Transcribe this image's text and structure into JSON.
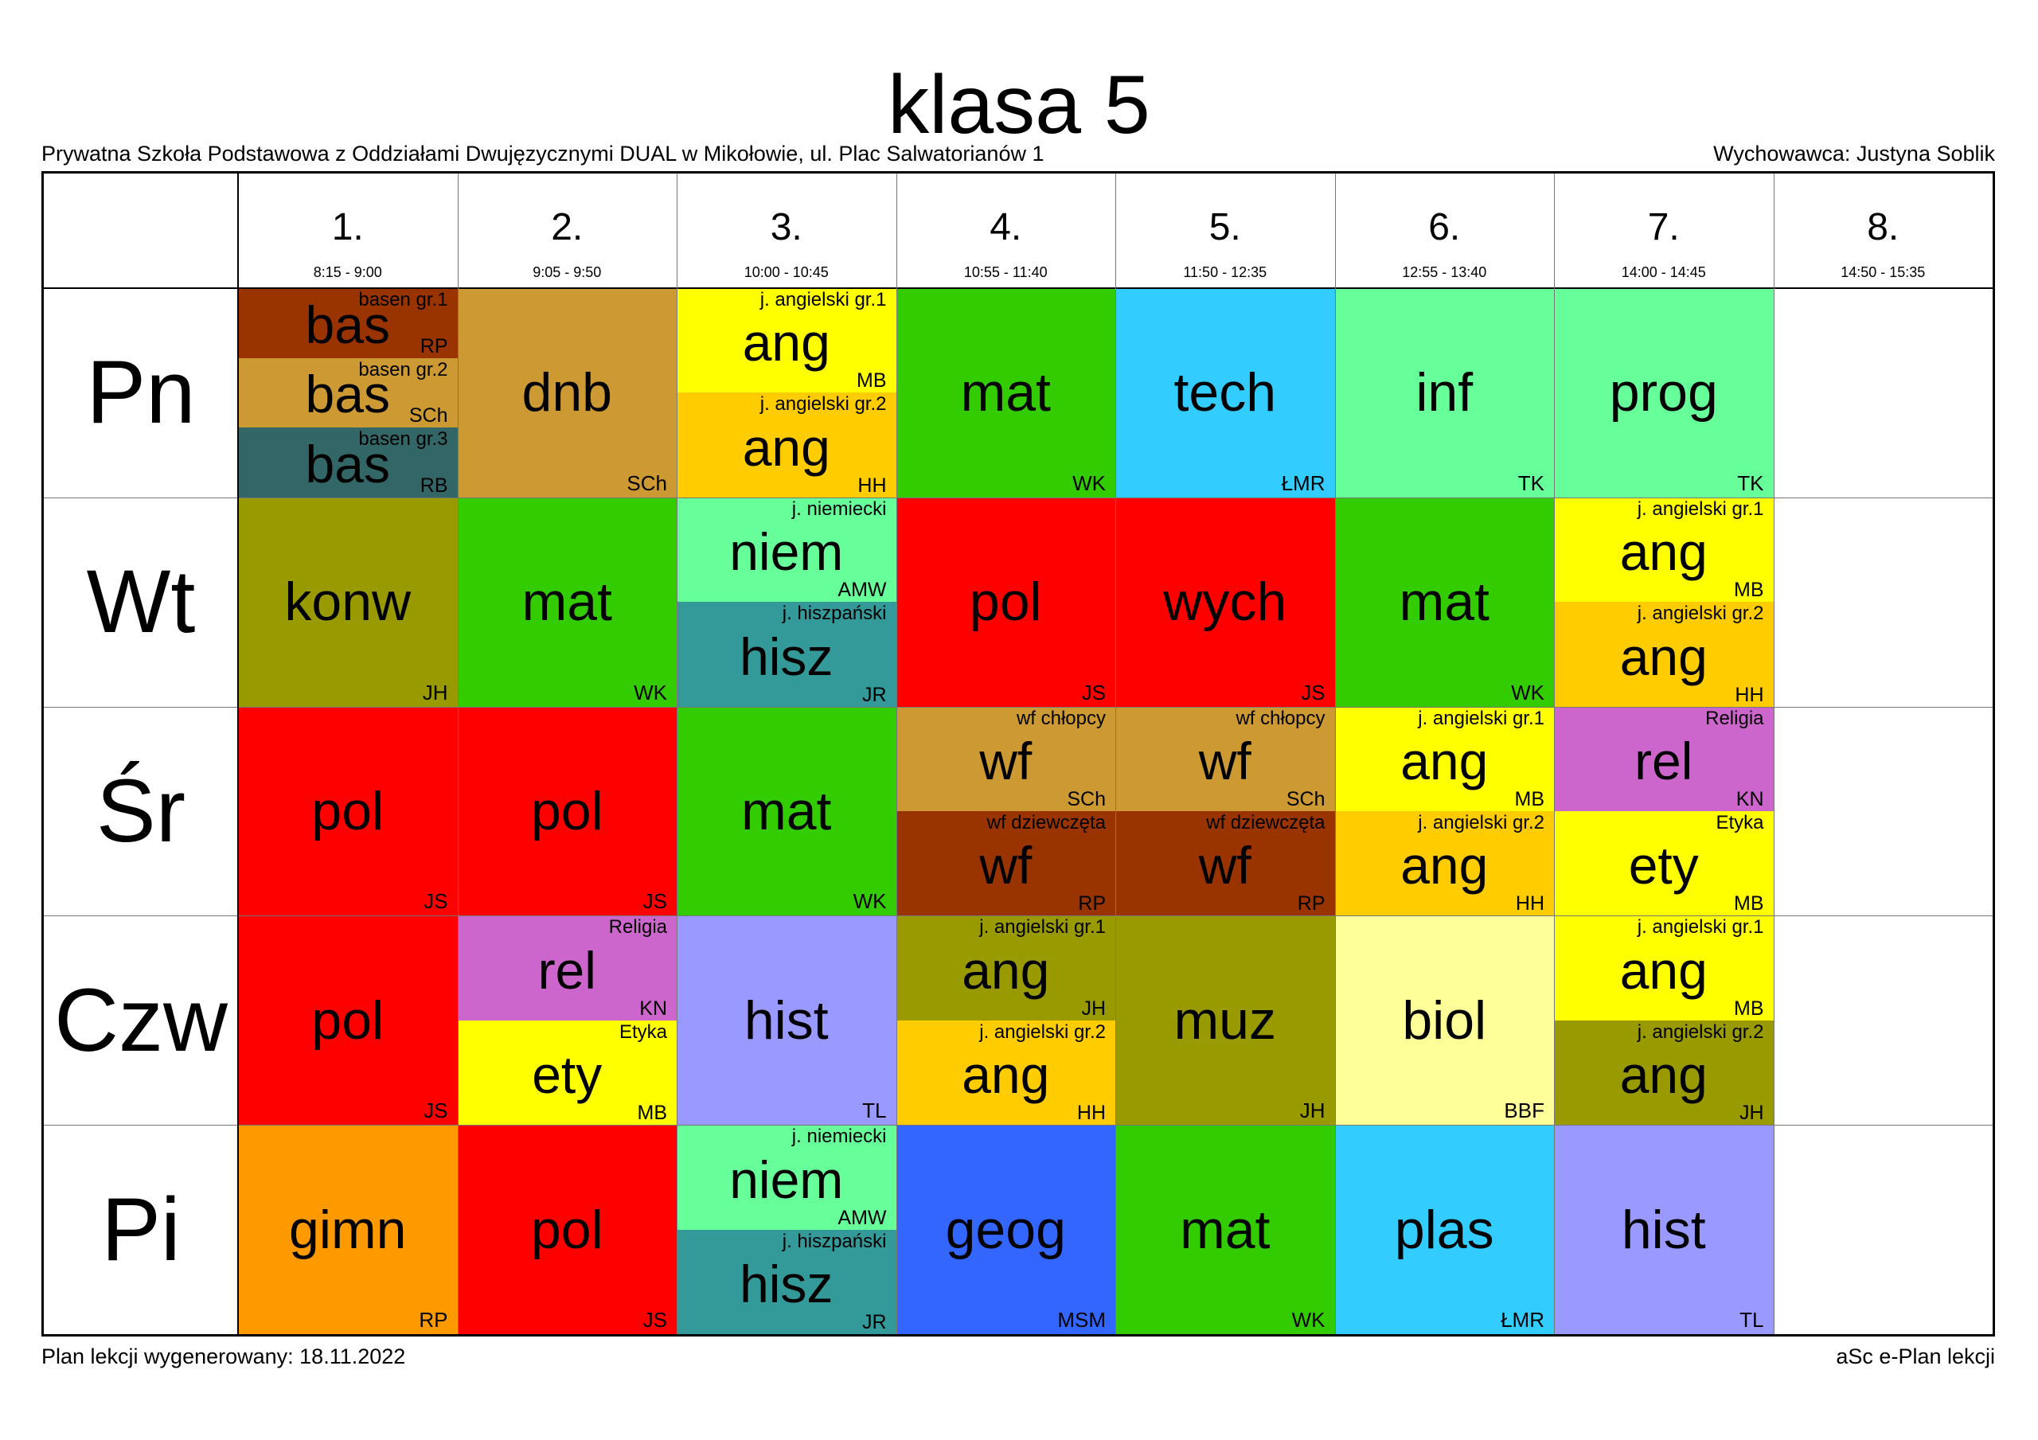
{
  "title": "klasa 5",
  "school": "Prywatna Szkoła Podstawowa z Oddziałami Dwujęzycznymi DUAL w Mikołowie, ul. Plac Salwatorianów 1",
  "form_teacher": "Wychowawca: Justyna Soblik",
  "footer": {
    "generated": "Plan lekcji wygenerowany: 18.11.2022",
    "app": "aSc e-Plan lekcji"
  },
  "periods": [
    {
      "num": "1.",
      "time": "8:15 - 9:00"
    },
    {
      "num": "2.",
      "time": "9:05 - 9:50"
    },
    {
      "num": "3.",
      "time": "10:00 - 10:45"
    },
    {
      "num": "4.",
      "time": "10:55 - 11:40"
    },
    {
      "num": "5.",
      "time": "11:50 - 12:35"
    },
    {
      "num": "6.",
      "time": "12:55 - 13:40"
    },
    {
      "num": "7.",
      "time": "14:00 - 14:45"
    },
    {
      "num": "8.",
      "time": "14:50 - 15:35"
    }
  ],
  "days": [
    {
      "name": "Pn",
      "slots": [
        [
          {
            "subject": "bas",
            "group": "basen gr.1",
            "teacher": "RP",
            "color": "#993300"
          },
          {
            "subject": "bas",
            "group": "basen gr.2",
            "teacher": "SCh",
            "color": "#CC9933"
          },
          {
            "subject": "bas",
            "group": "basen gr.3",
            "teacher": "RB",
            "color": "#336666"
          }
        ],
        [
          {
            "subject": "dnb",
            "group": "",
            "teacher": "SCh",
            "color": "#CC9933"
          }
        ],
        [
          {
            "subject": "ang",
            "group": "j. angielski gr.1",
            "teacher": "MB",
            "color": "#FFFF00"
          },
          {
            "subject": "ang",
            "group": "j. angielski gr.2",
            "teacher": "HH",
            "color": "#FFCC00"
          }
        ],
        [
          {
            "subject": "mat",
            "group": "",
            "teacher": "WK",
            "color": "#33CC00"
          }
        ],
        [
          {
            "subject": "tech",
            "group": "",
            "teacher": "ŁMR",
            "color": "#33CCFF"
          }
        ],
        [
          {
            "subject": "inf",
            "group": "",
            "teacher": "TK",
            "color": "#66FF99"
          }
        ],
        [
          {
            "subject": "prog",
            "group": "",
            "teacher": "TK",
            "color": "#66FF99"
          }
        ],
        []
      ]
    },
    {
      "name": "Wt",
      "slots": [
        [
          {
            "subject": "konw",
            "group": "",
            "teacher": "JH",
            "color": "#999900"
          }
        ],
        [
          {
            "subject": "mat",
            "group": "",
            "teacher": "WK",
            "color": "#33CC00"
          }
        ],
        [
          {
            "subject": "niem",
            "group": "j. niemiecki",
            "teacher": "AMW",
            "color": "#66FF99"
          },
          {
            "subject": "hisz",
            "group": "j. hiszpański",
            "teacher": "JR",
            "color": "#339999"
          }
        ],
        [
          {
            "subject": "pol",
            "group": "",
            "teacher": "JS",
            "color": "#FF0000"
          }
        ],
        [
          {
            "subject": "wych",
            "group": "",
            "teacher": "JS",
            "color": "#FF0000"
          }
        ],
        [
          {
            "subject": "mat",
            "group": "",
            "teacher": "WK",
            "color": "#33CC00"
          }
        ],
        [
          {
            "subject": "ang",
            "group": "j. angielski gr.1",
            "teacher": "MB",
            "color": "#FFFF00"
          },
          {
            "subject": "ang",
            "group": "j. angielski gr.2",
            "teacher": "HH",
            "color": "#FFCC00"
          }
        ],
        []
      ]
    },
    {
      "name": "Śr",
      "slots": [
        [
          {
            "subject": "pol",
            "group": "",
            "teacher": "JS",
            "color": "#FF0000"
          }
        ],
        [
          {
            "subject": "pol",
            "group": "",
            "teacher": "JS",
            "color": "#FF0000"
          }
        ],
        [
          {
            "subject": "mat",
            "group": "",
            "teacher": "WK",
            "color": "#33CC00"
          }
        ],
        [
          {
            "subject": "wf",
            "group": "wf chłopcy",
            "teacher": "SCh",
            "color": "#CC9933"
          },
          {
            "subject": "wf",
            "group": "wf dziewczęta",
            "teacher": "RP",
            "color": "#993300"
          }
        ],
        [
          {
            "subject": "wf",
            "group": "wf chłopcy",
            "teacher": "SCh",
            "color": "#CC9933"
          },
          {
            "subject": "wf",
            "group": "wf dziewczęta",
            "teacher": "RP",
            "color": "#993300"
          }
        ],
        [
          {
            "subject": "ang",
            "group": "j. angielski gr.1",
            "teacher": "MB",
            "color": "#FFFF00"
          },
          {
            "subject": "ang",
            "group": "j. angielski gr.2",
            "teacher": "HH",
            "color": "#FFCC00"
          }
        ],
        [
          {
            "subject": "rel",
            "group": "Religia",
            "teacher": "KN",
            "color": "#CC66CC"
          },
          {
            "subject": "ety",
            "group": "Etyka",
            "teacher": "MB",
            "color": "#FFFF00"
          }
        ],
        []
      ]
    },
    {
      "name": "Czw",
      "slots": [
        [
          {
            "subject": "pol",
            "group": "",
            "teacher": "JS",
            "color": "#FF0000"
          }
        ],
        [
          {
            "subject": "rel",
            "group": "Religia",
            "teacher": "KN",
            "color": "#CC66CC"
          },
          {
            "subject": "ety",
            "group": "Etyka",
            "teacher": "MB",
            "color": "#FFFF00"
          }
        ],
        [
          {
            "subject": "hist",
            "group": "",
            "teacher": "TL",
            "color": "#9999FF"
          }
        ],
        [
          {
            "subject": "ang",
            "group": "j. angielski gr.1",
            "teacher": "JH",
            "color": "#999900"
          },
          {
            "subject": "ang",
            "group": "j. angielski gr.2",
            "teacher": "HH",
            "color": "#FFCC00"
          }
        ],
        [
          {
            "subject": "muz",
            "group": "",
            "teacher": "JH",
            "color": "#999900"
          }
        ],
        [
          {
            "subject": "biol",
            "group": "",
            "teacher": "BBF",
            "color": "#FFFF99"
          }
        ],
        [
          {
            "subject": "ang",
            "group": "j. angielski gr.1",
            "teacher": "MB",
            "color": "#FFFF00"
          },
          {
            "subject": "ang",
            "group": "j. angielski gr.2",
            "teacher": "JH",
            "color": "#999900"
          }
        ],
        []
      ]
    },
    {
      "name": "Pi",
      "slots": [
        [
          {
            "subject": "gimn",
            "group": "",
            "teacher": "RP",
            "color": "#FF9900"
          }
        ],
        [
          {
            "subject": "pol",
            "group": "",
            "teacher": "JS",
            "color": "#FF0000"
          }
        ],
        [
          {
            "subject": "niem",
            "group": "j. niemiecki",
            "teacher": "AMW",
            "color": "#66FF99"
          },
          {
            "subject": "hisz",
            "group": "j. hiszpański",
            "teacher": "JR",
            "color": "#339999"
          }
        ],
        [
          {
            "subject": "geog",
            "group": "",
            "teacher": "MSM",
            "color": "#3366FF"
          }
        ],
        [
          {
            "subject": "mat",
            "group": "",
            "teacher": "WK",
            "color": "#33CC00"
          }
        ],
        [
          {
            "subject": "plas",
            "group": "",
            "teacher": "ŁMR",
            "color": "#33CCFF"
          }
        ],
        [
          {
            "subject": "hist",
            "group": "",
            "teacher": "TL",
            "color": "#9999FF"
          }
        ],
        []
      ]
    }
  ]
}
